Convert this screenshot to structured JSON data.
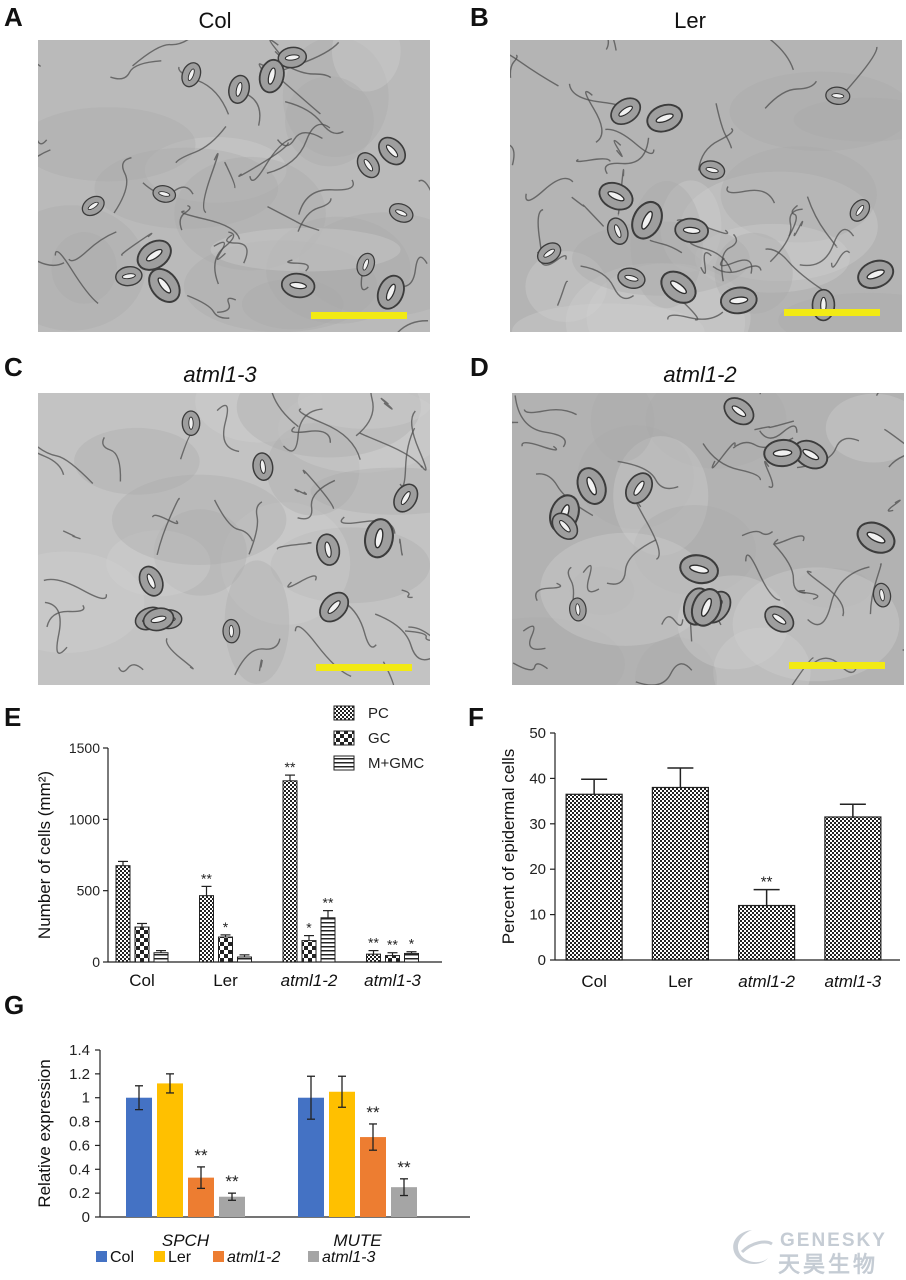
{
  "panels": {
    "A": {
      "letter": "A",
      "title": "Col"
    },
    "B": {
      "letter": "B",
      "title": "Ler"
    },
    "C": {
      "letter": "C",
      "title": "atml1-3"
    },
    "D": {
      "letter": "D",
      "title": "atml1-2"
    },
    "E": {
      "letter": "E"
    },
    "F": {
      "letter": "F"
    },
    "G": {
      "letter": "G"
    }
  },
  "colors": {
    "scalebar": "#f2ea14",
    "col": "#4472c4",
    "ler": "#ffc000",
    "atml1_2": "#ed7d31",
    "atml1_3": "#a5a5a5"
  },
  "chart_data": [
    {
      "id": "E",
      "type": "bar",
      "ylabel": "Number of cells (mm²)",
      "ylim": [
        0,
        1500
      ],
      "yticks": [
        "0",
        "500",
        "1000",
        "1500"
      ],
      "categories": [
        "Col",
        "Ler",
        "atml1-2",
        "atml1-3"
      ],
      "categories_italic": [
        false,
        false,
        true,
        true
      ],
      "series": [
        {
          "name": "PC",
          "values": [
            675,
            465,
            1270,
            55
          ],
          "errors": [
            30,
            65,
            40,
            25
          ],
          "sig": [
            "",
            "**",
            "**",
            "**"
          ]
        },
        {
          "name": "GC",
          "values": [
            245,
            175,
            150,
            45
          ],
          "errors": [
            25,
            15,
            35,
            20
          ],
          "sig": [
            "",
            "*",
            "*",
            "**"
          ]
        },
        {
          "name": "M+GMC",
          "values": [
            65,
            35,
            310,
            60
          ],
          "errors": [
            15,
            15,
            50,
            12
          ],
          "sig": [
            "",
            "",
            "**",
            "*"
          ]
        }
      ],
      "legend_position": "top-right"
    },
    {
      "id": "F",
      "type": "bar",
      "ylabel": "Percent of epidermal cells",
      "ylim": [
        0,
        50
      ],
      "yticks": [
        "0",
        "10",
        "20",
        "30",
        "40",
        "50"
      ],
      "categories": [
        "Col",
        "Ler",
        "atml1-2",
        "atml1-3"
      ],
      "categories_italic": [
        false,
        false,
        true,
        true
      ],
      "values": [
        36.5,
        38,
        12,
        31.5
      ],
      "errors": [
        3.3,
        4.3,
        3.5,
        2.8
      ],
      "sig": [
        "",
        "",
        "**",
        ""
      ]
    },
    {
      "id": "G",
      "type": "bar",
      "ylabel": "Relative expression",
      "ylim": [
        0,
        1.4
      ],
      "yticks": [
        "0",
        "0.2",
        "0.4",
        "0.6",
        "0.8",
        "1",
        "1.2",
        "1.4"
      ],
      "categories": [
        "SPCH",
        "MUTE"
      ],
      "series": [
        {
          "name": "Col",
          "values": [
            1.0,
            1.0
          ],
          "errors": [
            0.1,
            0.18
          ],
          "sig": [
            "",
            ""
          ]
        },
        {
          "name": "Ler",
          "values": [
            1.12,
            1.05
          ],
          "errors": [
            0.08,
            0.13
          ],
          "sig": [
            "",
            ""
          ]
        },
        {
          "name": "atml1-2",
          "values": [
            0.33,
            0.67
          ],
          "errors": [
            0.09,
            0.11
          ],
          "sig": [
            "**",
            "**"
          ]
        },
        {
          "name": "atml1-3",
          "values": [
            0.17,
            0.25
          ],
          "errors": [
            0.03,
            0.07
          ],
          "sig": [
            "**",
            "**"
          ]
        }
      ],
      "legend_position": "bottom",
      "legend_italic": [
        false,
        false,
        true,
        true
      ]
    }
  ],
  "watermark": {
    "latin": "GENESKY",
    "cjk": "天昊生物"
  }
}
